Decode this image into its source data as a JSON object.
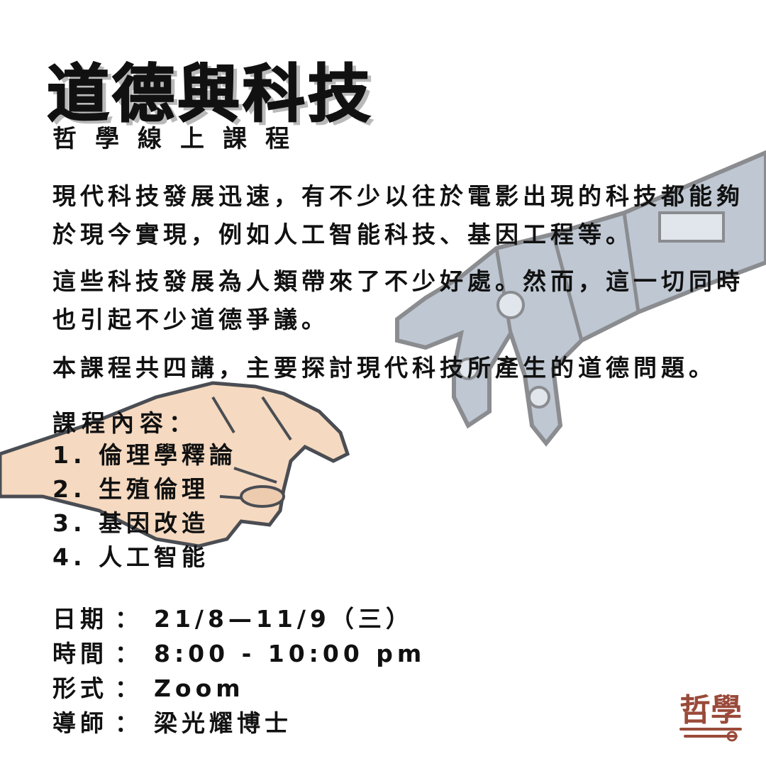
{
  "title": "道德與科技",
  "subtitle": "哲學線上課程",
  "paragraphs": [
    "現代科技發展迅速，有不少以往於電影出現的科技都能夠於現今實現，例如人工智能科技、基因工程等。",
    "這些科技發展為人類帶來了不少好處。然而，這一切同時也引起不少道德爭議。",
    "本課程共四講，主要探討現代科技所產生的道德問題。"
  ],
  "course_heading": "課程內容：",
  "courses": [
    "1. 倫理學釋論",
    "2. 生殖倫理",
    "3. 基因改造",
    "4. 人工智能"
  ],
  "info": {
    "date_label": "日期",
    "date_value": "21/8—11/9（三）",
    "time_label": "時間",
    "time_value": "8:00 - 10:00 pm",
    "format_label": "形式",
    "format_value": "Zoom",
    "tutor_label": "導師",
    "tutor_value": "梁光耀博士",
    "colon": "："
  },
  "logo_text": "哲學",
  "colors": {
    "text": "#111111",
    "title_shadow": "#b9b9b9",
    "skin": "#f4d3b6",
    "robot": "#8a9aae",
    "logo": "#9a4a3a"
  },
  "icons": [
    "human-hand-illustration",
    "robot-hand-illustration",
    "philosophy-seal-logo"
  ]
}
